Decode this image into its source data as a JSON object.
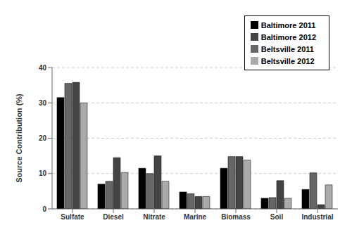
{
  "chart_data": {
    "type": "bar",
    "categories": [
      "Sulfate",
      "Diesel",
      "Nitrate",
      "Marine",
      "Biomass",
      "Soil",
      "Industrial"
    ],
    "series": [
      {
        "name": "Baltimore 2011",
        "color": "#000000",
        "values": [
          31.5,
          7.0,
          11.5,
          4.8,
          11.5,
          3.0,
          5.5
        ]
      },
      {
        "name": "Beltsville 2011",
        "color": "#666666",
        "values": [
          35.5,
          7.8,
          10.0,
          4.3,
          14.8,
          3.2,
          10.2
        ]
      },
      {
        "name": "Baltimore 2012",
        "color": "#444444",
        "values": [
          35.8,
          14.5,
          15.0,
          3.5,
          14.8,
          8.0,
          1.2
        ]
      },
      {
        "name": "Beltsville 2012",
        "color": "#aaaaaa",
        "values": [
          30.0,
          10.3,
          7.8,
          3.5,
          13.8,
          3.0,
          6.8
        ]
      }
    ],
    "ylabel": "Source Contribution (%)",
    "ylim": [
      0,
      40
    ],
    "yticks": [
      0,
      10,
      20,
      30,
      40
    ],
    "grid": true,
    "legend": "upper right"
  }
}
